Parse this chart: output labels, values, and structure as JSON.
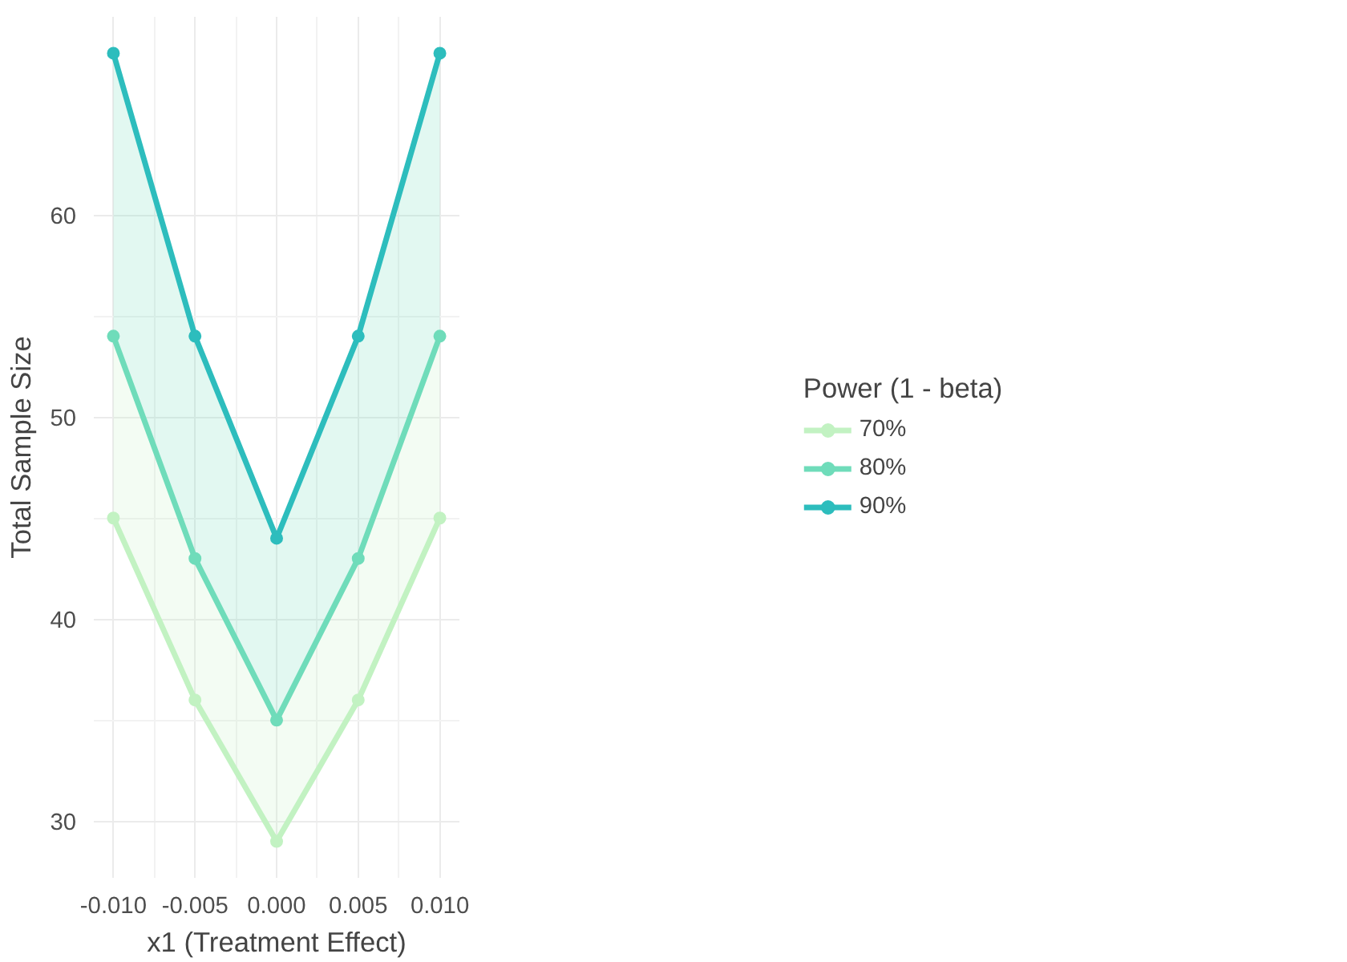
{
  "chart_data": {
    "type": "line",
    "xlabel": "x1 (Treatment Effect)",
    "ylabel": "Total Sample Size",
    "legend_title": "Power (1 - beta)",
    "legend": "right",
    "grid": true,
    "marker": "circle",
    "line_style": "solid",
    "x": [
      -0.01,
      -0.005,
      0,
      0.005,
      0.01
    ],
    "xlim": [
      -0.0112,
      0.0112
    ],
    "xticks": [
      {
        "value": -0.01,
        "label": "-0.010"
      },
      {
        "value": -0.005,
        "label": "-0.005"
      },
      {
        "value": 0,
        "label": "0.000"
      },
      {
        "value": 0.005,
        "label": "0.005"
      },
      {
        "value": 0.01,
        "label": "0.010"
      }
    ],
    "ylim": [
      27.2,
      69.8
    ],
    "yticks": [
      30,
      40,
      50,
      60
    ],
    "series": [
      {
        "name": "70%",
        "color": "#c2f2c2",
        "values": [
          45,
          36,
          29,
          36,
          45
        ],
        "lower": [
          45,
          36,
          29,
          36,
          45
        ],
        "upper": [
          54,
          43,
          35,
          43,
          54
        ]
      },
      {
        "name": "80%",
        "color": "#6fdcba",
        "values": [
          54,
          43,
          35,
          43,
          54
        ],
        "lower": [
          54,
          43,
          35,
          43,
          54
        ],
        "upper": [
          68,
          54,
          44,
          54,
          68
        ]
      },
      {
        "name": "90%",
        "color": "#2dbdbd",
        "values": [
          68,
          54,
          44,
          54,
          68
        ]
      }
    ]
  }
}
